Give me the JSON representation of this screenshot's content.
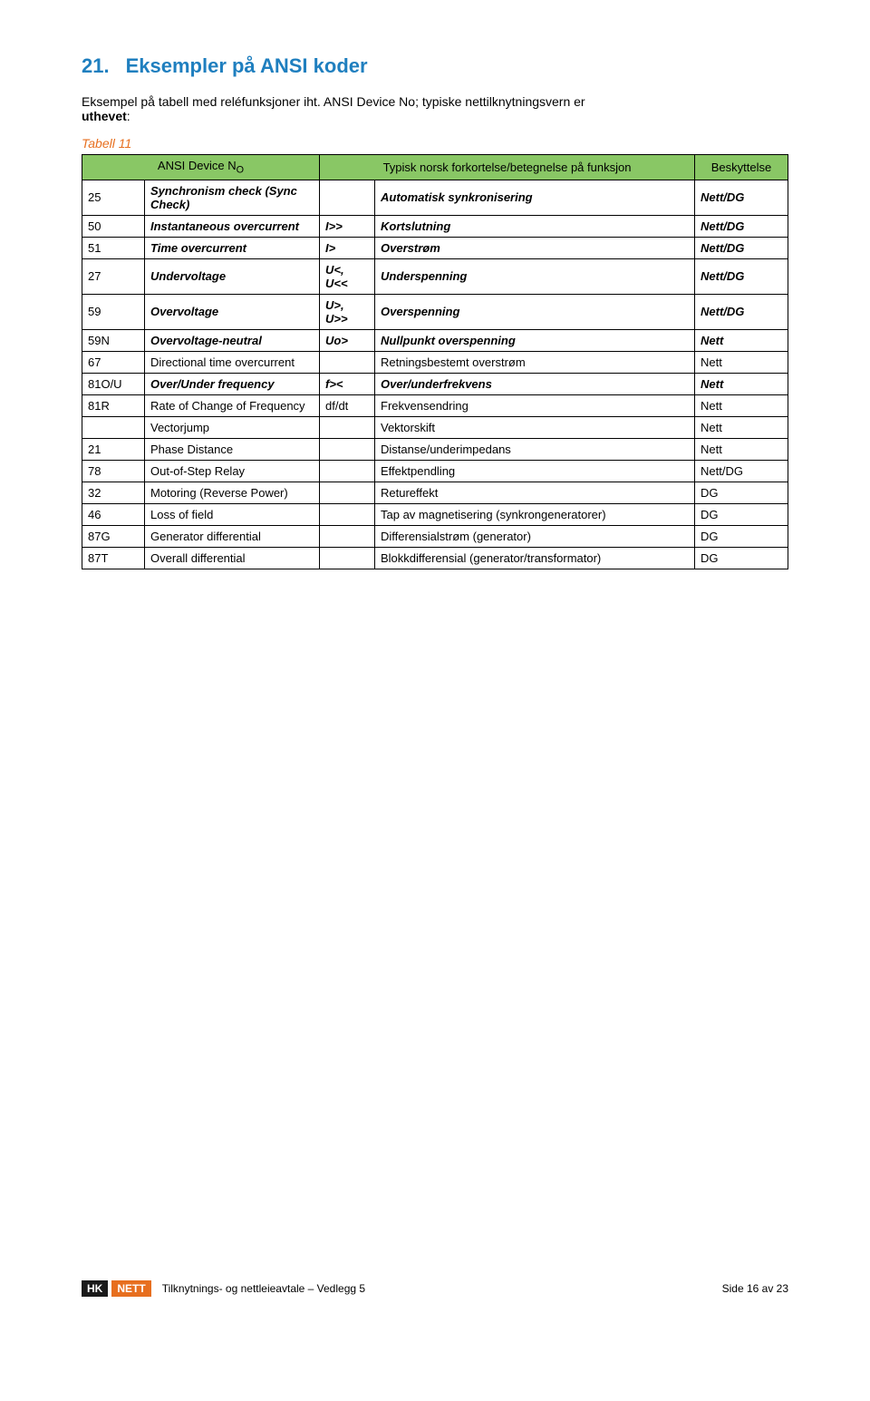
{
  "heading": {
    "num": "21.",
    "text": "Eksempler på ANSI koder"
  },
  "intro": {
    "line1": "Eksempel på tabell med reléfunksjoner iht. ANSI Device No; typiske nettilknytningsvern er",
    "uthevet": "uthevet",
    "colon": ":"
  },
  "tablelabel": "Tabell 11",
  "columns": {
    "c1a": "ANSI Device N",
    "c1b": "O",
    "c2": "Typisk norsk forkortelse/betegnelse på funksjon",
    "c3": "Beskyttelse"
  },
  "rows": [
    {
      "no": "25",
      "name": "Synchronism check (Sync Check)",
      "sym": "",
      "desc": "Automatisk synkronisering",
      "prot": "Nett/DG",
      "bold": true
    },
    {
      "no": "50",
      "name": "Instantaneous overcurrent",
      "sym": "I>>",
      "desc": "Kortslutning",
      "prot": "Nett/DG",
      "bold": true
    },
    {
      "no": "51",
      "name": "Time overcurrent",
      "sym": "I>",
      "desc": "Overstrøm",
      "prot": "Nett/DG",
      "bold": true
    },
    {
      "no": "27",
      "name": "Undervoltage",
      "sym": "U<,\nU<<",
      "desc": "Underspenning",
      "prot": "Nett/DG",
      "bold": true
    },
    {
      "no": "59",
      "name": "Overvoltage",
      "sym": "U>,\nU>>",
      "desc": "Overspenning",
      "prot": "Nett/DG",
      "bold": true
    },
    {
      "no": "59N",
      "name": "Overvoltage-neutral",
      "sym": "Uo>",
      "desc": "Nullpunkt overspenning",
      "prot": "Nett",
      "bold": true
    },
    {
      "no": "67",
      "name": "Directional time overcurrent",
      "sym": "",
      "desc": "Retningsbestemt overstrøm",
      "prot": "Nett",
      "bold": false
    },
    {
      "no": "81O/U",
      "name": "Over/Under frequency",
      "sym": "f><",
      "desc": "Over/underfrekvens",
      "prot": "Nett",
      "bold": true
    },
    {
      "no": "81R",
      "name": "Rate of Change of Frequency",
      "sym": "df/dt",
      "desc": "Frekvensendring",
      "prot": "Nett",
      "bold": false
    },
    {
      "no": "",
      "name": "Vectorjump",
      "sym": "",
      "desc": "Vektorskift",
      "prot": "Nett",
      "bold": false
    },
    {
      "no": "21",
      "name": "Phase Distance",
      "sym": "",
      "desc": "Distanse/underimpedans",
      "prot": "Nett",
      "bold": false
    },
    {
      "no": "78",
      "name": "Out-of-Step Relay",
      "sym": "",
      "desc": "Effektpendling",
      "prot": "Nett/DG",
      "bold": false
    },
    {
      "no": "32",
      "name": "Motoring (Reverse Power)",
      "sym": "",
      "desc": "Retureffekt",
      "prot": "DG",
      "bold": false
    },
    {
      "no": "46",
      "name": "Loss of  field",
      "sym": "",
      "desc": "Tap av magnetisering (synkrongeneratorer)",
      "prot": "DG",
      "bold": false
    },
    {
      "no": "87G",
      "name": "Generator differential",
      "sym": "",
      "desc": "Differensialstrøm (generator)",
      "prot": "DG",
      "bold": false
    },
    {
      "no": "87T",
      "name": "Overall differential",
      "sym": "",
      "desc": "Blokkdifferensial (generator/transformator)",
      "prot": "DG",
      "bold": false
    }
  ],
  "footer": {
    "logo_hk": "HK",
    "logo_nett": "NETT",
    "title": "Tilknytnings- og nettleieavtale – Vedlegg 5",
    "page": "Side 16 av 23"
  },
  "colors": {
    "heading": "#1f7fbf",
    "tablelabel": "#e76f1f",
    "th_bg": "#89c765",
    "logo_nett_bg": "#e76f1f"
  }
}
